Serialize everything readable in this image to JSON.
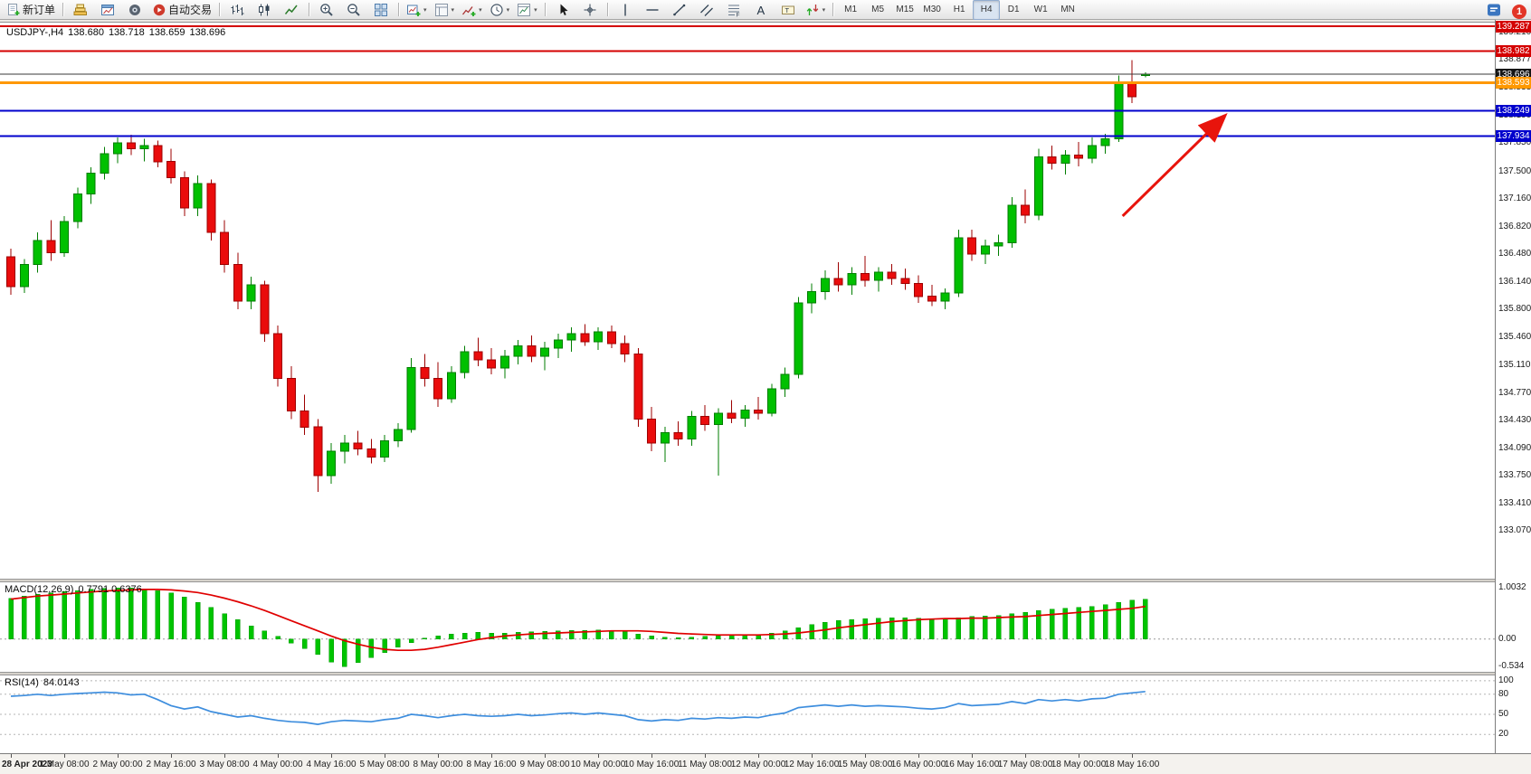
{
  "toolbar": {
    "dropdown_caret": "▾",
    "notification_badge": "1",
    "groups": [
      {
        "items": [
          {
            "name": "new-order",
            "icon": "new-order",
            "label": "新订单"
          }
        ]
      },
      {
        "items": [
          {
            "name": "market-watch",
            "icon": "market-watch"
          },
          {
            "name": "chart-window",
            "icon": "chart-window"
          },
          {
            "name": "sound-alert",
            "icon": "sound"
          },
          {
            "name": "auto-trading",
            "icon": "auto-trading",
            "label": "自动交易"
          }
        ]
      },
      {
        "items": [
          {
            "name": "bar-chart-mode",
            "icon": "bar-chart"
          },
          {
            "name": "candlestick-mode",
            "icon": "candlestick-chart"
          },
          {
            "name": "line-chart-mode",
            "icon": "line-chart"
          }
        ]
      },
      {
        "items": [
          {
            "name": "zoom-in",
            "icon": "zoom-in"
          },
          {
            "name": "zoom-out",
            "icon": "zoom-out"
          },
          {
            "name": "tile-windows",
            "icon": "tile-windows"
          }
        ]
      },
      {
        "items": [
          {
            "name": "new-chart",
            "icon": "new-chart",
            "dropdown": true
          },
          {
            "name": "profiles",
            "icon": "profiles",
            "dropdown": true
          },
          {
            "name": "indicators-list",
            "icon": "indicators",
            "dropdown": true
          },
          {
            "name": "periods",
            "icon": "periods",
            "dropdown": true
          },
          {
            "name": "templates",
            "icon": "templates",
            "dropdown": true
          }
        ]
      },
      {
        "items": [
          {
            "name": "cursor-tool",
            "icon": "cursor"
          },
          {
            "name": "crosshair-tool",
            "icon": "crosshair"
          }
        ]
      },
      {
        "items": [
          {
            "name": "vertical-line-tool",
            "icon": "vertical-line"
          },
          {
            "name": "horizontal-line-tool",
            "icon": "horizontal-line"
          },
          {
            "name": "trendline-tool",
            "icon": "trendline"
          },
          {
            "name": "equidistant-channel-tool",
            "icon": "equidistant-channel"
          },
          {
            "name": "fibonacci-tool",
            "icon": "fibonacci"
          },
          {
            "name": "text-tool",
            "icon": "text"
          },
          {
            "name": "text-label-tool",
            "icon": "text-label"
          },
          {
            "name": "arrows-tool",
            "icon": "arrows",
            "dropdown": true
          }
        ]
      },
      {
        "items": [
          {
            "name": "tf-m1",
            "label": "M1"
          },
          {
            "name": "tf-m5",
            "label": "M5"
          },
          {
            "name": "tf-m15",
            "label": "M15"
          },
          {
            "name": "tf-m30",
            "label": "M30"
          },
          {
            "name": "tf-h1",
            "label": "H1"
          },
          {
            "name": "tf-h4",
            "label": "H4",
            "active": true
          },
          {
            "name": "tf-d1",
            "label": "D1"
          },
          {
            "name": "tf-w1",
            "label": "W1"
          },
          {
            "name": "tf-mn",
            "label": "MN"
          }
        ]
      }
    ]
  },
  "chart": {
    "symbol_period": "USDJPY-,H4",
    "ohlc": {
      "open": "138.680",
      "high": "138.718",
      "low": "138.659",
      "close": "138.696"
    }
  },
  "indicators": {
    "macd": {
      "label": "MACD(12,26,9)",
      "values": "0.7791 0.6376"
    },
    "rsi": {
      "label": "RSI(14)",
      "values": "84.0143"
    }
  },
  "chart_data": {
    "type": "candlestick",
    "symbol": "USDJPY-",
    "timeframe": "H4",
    "colors": {
      "bull": "#00c000",
      "bull_border": "#007e00",
      "bear": "#ea0c0c",
      "bear_border": "#9d0000",
      "macd_hist": "#00c400",
      "macd_hist_border": "#009b00",
      "macd_signal": "#e00000",
      "rsi_line": "#3e8ede",
      "bid_line": "#3a3a3a",
      "arrow": "#e8140c"
    },
    "price_axis": {
      "ylim": [
        132.481,
        139.333
      ],
      "ticks": [
        "139.210",
        "138.877",
        "138.533",
        "138.190",
        "137.850",
        "137.500",
        "137.160",
        "136.820",
        "136.480",
        "136.140",
        "135.800",
        "135.460",
        "135.110",
        "134.770",
        "134.430",
        "134.090",
        "133.750",
        "133.410",
        "133.070"
      ]
    },
    "hlines": [
      {
        "price": 139.287,
        "label": "139.287",
        "color": "#d40000",
        "width": 2,
        "tag": "#d40000"
      },
      {
        "price": 138.982,
        "label": "138.982",
        "color": "#d40000",
        "width": 2,
        "tag": "#d40000"
      },
      {
        "price": 138.696,
        "label": "138.696",
        "color": "#3a3a3a",
        "width": 1,
        "tag": "#151515"
      },
      {
        "price": 138.593,
        "label": "138.593",
        "color": "#ff9800",
        "width": 3,
        "tag": "#ff9800"
      },
      {
        "price": 138.249,
        "label": "138.249",
        "color": "#0000cd",
        "width": 2,
        "tag": "#0000cd"
      },
      {
        "price": 137.934,
        "label": "137.934",
        "color": "#0000cd",
        "width": 2,
        "tag": "#0000cd"
      }
    ],
    "candles": [
      [
        136.45,
        136.55,
        135.98,
        136.08
      ],
      [
        136.08,
        136.42,
        136.0,
        136.35
      ],
      [
        136.35,
        136.75,
        136.25,
        136.65
      ],
      [
        136.65,
        136.9,
        136.4,
        136.5
      ],
      [
        136.5,
        136.95,
        136.45,
        136.88
      ],
      [
        136.88,
        137.3,
        136.8,
        137.22
      ],
      [
        137.22,
        137.55,
        137.1,
        137.48
      ],
      [
        137.48,
        137.8,
        137.4,
        137.72
      ],
      [
        137.72,
        137.92,
        137.6,
        137.85
      ],
      [
        137.85,
        137.95,
        137.7,
        137.78
      ],
      [
        137.78,
        137.9,
        137.62,
        137.82
      ],
      [
        137.82,
        137.88,
        137.55,
        137.62
      ],
      [
        137.62,
        137.78,
        137.35,
        137.42
      ],
      [
        137.42,
        137.5,
        136.95,
        137.05
      ],
      [
        137.05,
        137.45,
        136.95,
        137.35
      ],
      [
        137.35,
        137.4,
        136.65,
        136.75
      ],
      [
        136.75,
        136.9,
        136.25,
        136.35
      ],
      [
        136.35,
        136.5,
        135.8,
        135.9
      ],
      [
        135.9,
        136.2,
        135.8,
        136.1
      ],
      [
        136.1,
        136.15,
        135.4,
        135.5
      ],
      [
        135.5,
        135.6,
        134.85,
        134.95
      ],
      [
        134.95,
        135.1,
        134.45,
        134.55
      ],
      [
        134.55,
        134.75,
        134.25,
        134.35
      ],
      [
        134.35,
        134.45,
        133.55,
        133.75
      ],
      [
        133.75,
        134.15,
        133.65,
        134.05
      ],
      [
        134.05,
        134.25,
        133.9,
        134.15
      ],
      [
        134.15,
        134.3,
        134.0,
        134.08
      ],
      [
        134.08,
        134.2,
        133.9,
        133.98
      ],
      [
        133.98,
        134.25,
        133.92,
        134.18
      ],
      [
        134.18,
        134.4,
        134.1,
        134.32
      ],
      [
        134.32,
        135.2,
        134.28,
        135.08
      ],
      [
        135.08,
        135.25,
        134.85,
        134.95
      ],
      [
        134.95,
        135.15,
        134.6,
        134.7
      ],
      [
        134.7,
        135.1,
        134.65,
        135.02
      ],
      [
        135.02,
        135.35,
        134.95,
        135.28
      ],
      [
        135.28,
        135.45,
        135.1,
        135.18
      ],
      [
        135.18,
        135.32,
        135.0,
        135.08
      ],
      [
        135.08,
        135.3,
        134.95,
        135.22
      ],
      [
        135.22,
        135.42,
        135.12,
        135.35
      ],
      [
        135.35,
        135.48,
        135.15,
        135.22
      ],
      [
        135.22,
        135.4,
        135.05,
        135.32
      ],
      [
        135.32,
        135.5,
        135.2,
        135.42
      ],
      [
        135.42,
        135.58,
        135.28,
        135.5
      ],
      [
        135.5,
        135.62,
        135.35,
        135.4
      ],
      [
        135.4,
        135.58,
        135.3,
        135.52
      ],
      [
        135.52,
        135.6,
        135.32,
        135.38
      ],
      [
        135.38,
        135.48,
        135.15,
        135.25
      ],
      [
        135.25,
        135.32,
        134.35,
        134.45
      ],
      [
        134.45,
        134.6,
        134.05,
        134.15
      ],
      [
        134.15,
        134.35,
        133.92,
        134.28
      ],
      [
        134.28,
        134.42,
        134.12,
        134.2
      ],
      [
        134.2,
        134.55,
        134.12,
        134.48
      ],
      [
        134.48,
        134.62,
        134.3,
        134.38
      ],
      [
        134.38,
        134.58,
        133.75,
        134.52
      ],
      [
        134.52,
        134.68,
        134.4,
        134.46
      ],
      [
        134.46,
        134.62,
        134.35,
        134.56
      ],
      [
        134.56,
        134.72,
        134.44,
        134.52
      ],
      [
        134.52,
        134.88,
        134.48,
        134.82
      ],
      [
        134.82,
        135.08,
        134.72,
        135.0
      ],
      [
        135.0,
        135.95,
        134.95,
        135.88
      ],
      [
        135.88,
        136.12,
        135.75,
        136.02
      ],
      [
        136.02,
        136.28,
        135.92,
        136.18
      ],
      [
        136.18,
        136.38,
        136.02,
        136.1
      ],
      [
        136.1,
        136.32,
        135.98,
        136.24
      ],
      [
        136.24,
        136.46,
        136.08,
        136.16
      ],
      [
        136.16,
        136.32,
        136.02,
        136.26
      ],
      [
        136.26,
        136.36,
        136.1,
        136.18
      ],
      [
        136.18,
        136.3,
        136.04,
        136.12
      ],
      [
        136.12,
        136.22,
        135.88,
        135.96
      ],
      [
        135.96,
        136.1,
        135.84,
        135.9
      ],
      [
        135.9,
        136.06,
        135.8,
        136.0
      ],
      [
        136.0,
        136.78,
        135.95,
        136.68
      ],
      [
        136.68,
        136.78,
        136.4,
        136.48
      ],
      [
        136.48,
        136.66,
        136.36,
        136.58
      ],
      [
        136.58,
        136.72,
        136.46,
        136.62
      ],
      [
        136.62,
        137.18,
        136.56,
        137.08
      ],
      [
        137.08,
        137.28,
        136.86,
        136.96
      ],
      [
        136.96,
        137.78,
        136.9,
        137.68
      ],
      [
        137.68,
        137.82,
        137.52,
        137.6
      ],
      [
        137.6,
        137.76,
        137.46,
        137.7
      ],
      [
        137.7,
        137.86,
        137.56,
        137.66
      ],
      [
        137.66,
        137.92,
        137.6,
        137.82
      ],
      [
        137.82,
        137.96,
        137.72,
        137.9
      ],
      [
        137.9,
        138.68,
        137.86,
        138.6
      ],
      [
        138.6,
        138.87,
        138.34,
        138.42
      ],
      [
        138.68,
        138.718,
        138.659,
        138.696
      ]
    ],
    "time_labels": [
      {
        "i": 0,
        "t": "28 Apr 2023",
        "date": true
      },
      {
        "i": 4,
        "t": "1 May 08:00"
      },
      {
        "i": 8,
        "t": "2 May 00:00"
      },
      {
        "i": 12,
        "t": "2 May 16:00"
      },
      {
        "i": 16,
        "t": "3 May 08:00"
      },
      {
        "i": 20,
        "t": "4 May 00:00"
      },
      {
        "i": 24,
        "t": "4 May 16:00"
      },
      {
        "i": 28,
        "t": "5 May 08:00"
      },
      {
        "i": 32,
        "t": "8 May 00:00"
      },
      {
        "i": 36,
        "t": "8 May 16:00"
      },
      {
        "i": 40,
        "t": "9 May 08:00"
      },
      {
        "i": 44,
        "t": "10 May 00:00"
      },
      {
        "i": 48,
        "t": "10 May 16:00"
      },
      {
        "i": 52,
        "t": "11 May 08:00"
      },
      {
        "i": 56,
        "t": "12 May 00:00"
      },
      {
        "i": 60,
        "t": "12 May 16:00"
      },
      {
        "i": 64,
        "t": "15 May 08:00"
      },
      {
        "i": 68,
        "t": "16 May 00:00"
      },
      {
        "i": 72,
        "t": "16 May 16:00"
      },
      {
        "i": 76,
        "t": "17 May 08:00"
      },
      {
        "i": 80,
        "t": "18 May 00:00"
      },
      {
        "i": 84,
        "t": "18 May 16:00"
      }
    ],
    "macd": {
      "ylim": [
        -0.64,
        1.109
      ],
      "scale_marks": [
        {
          "v": 1.0032,
          "t": "1.0032"
        },
        {
          "v": 0,
          "t": "0.00"
        },
        {
          "v": -0.534,
          "t": "-0.534"
        }
      ],
      "histogram": [
        0.8,
        0.84,
        0.88,
        0.9,
        0.93,
        0.95,
        0.97,
        0.99,
        1.0032,
        1.0,
        0.98,
        0.95,
        0.9,
        0.82,
        0.72,
        0.62,
        0.5,
        0.38,
        0.26,
        0.16,
        0.05,
        -0.08,
        -0.18,
        -0.3,
        -0.45,
        -0.534,
        -0.46,
        -0.36,
        -0.26,
        -0.16,
        -0.07,
        0.02,
        0.06,
        0.1,
        0.12,
        0.13,
        0.12,
        0.12,
        0.13,
        0.14,
        0.15,
        0.16,
        0.17,
        0.17,
        0.18,
        0.17,
        0.15,
        0.1,
        0.06,
        0.04,
        0.03,
        0.04,
        0.05,
        0.06,
        0.07,
        0.08,
        0.09,
        0.12,
        0.16,
        0.22,
        0.28,
        0.33,
        0.36,
        0.38,
        0.4,
        0.41,
        0.42,
        0.42,
        0.41,
        0.4,
        0.4,
        0.42,
        0.44,
        0.45,
        0.46,
        0.5,
        0.52,
        0.56,
        0.58,
        0.6,
        0.62,
        0.64,
        0.67,
        0.72,
        0.76,
        0.7791
      ],
      "signal": [
        0.78,
        0.81,
        0.84,
        0.86,
        0.88,
        0.9,
        0.92,
        0.94,
        0.95,
        0.96,
        0.97,
        0.97,
        0.96,
        0.94,
        0.91,
        0.86,
        0.8,
        0.73,
        0.65,
        0.56,
        0.46,
        0.36,
        0.26,
        0.16,
        0.06,
        -0.03,
        -0.1,
        -0.16,
        -0.2,
        -0.22,
        -0.22,
        -0.2,
        -0.16,
        -0.11,
        -0.06,
        -0.01,
        0.03,
        0.06,
        0.08,
        0.1,
        0.11,
        0.12,
        0.13,
        0.14,
        0.15,
        0.16,
        0.16,
        0.16,
        0.15,
        0.13,
        0.11,
        0.1,
        0.09,
        0.08,
        0.08,
        0.08,
        0.08,
        0.09,
        0.1,
        0.12,
        0.15,
        0.18,
        0.22,
        0.25,
        0.28,
        0.31,
        0.34,
        0.36,
        0.38,
        0.39,
        0.4,
        0.4,
        0.41,
        0.41,
        0.42,
        0.43,
        0.44,
        0.46,
        0.48,
        0.5,
        0.52,
        0.54,
        0.56,
        0.58,
        0.6,
        0.6376
      ]
    },
    "rsi": {
      "ylim": [
        -8,
        108
      ],
      "levels": [
        "100",
        "80",
        "50",
        "20"
      ],
      "values": [
        77,
        78,
        80,
        78,
        80,
        81,
        82,
        83,
        82,
        79,
        80,
        72,
        63,
        58,
        61,
        54,
        50,
        46,
        48,
        44,
        41,
        39,
        38,
        35,
        39,
        41,
        40,
        39,
        42,
        44,
        50,
        48,
        45,
        48,
        50,
        48,
        47,
        48,
        50,
        48,
        49,
        51,
        52,
        50,
        52,
        50,
        48,
        42,
        40,
        42,
        41,
        44,
        43,
        45,
        44,
        46,
        45,
        49,
        52,
        60,
        62,
        64,
        62,
        64,
        62,
        63,
        62,
        61,
        59,
        58,
        60,
        66,
        63,
        64,
        65,
        69,
        66,
        72,
        70,
        72,
        70,
        73,
        74,
        80,
        82,
        84.01
      ]
    },
    "annotations": [
      {
        "type": "arrow",
        "name": "up-trend-arrow",
        "color": "#e8140c",
        "stroke_width": 3,
        "from_candle": 83.3,
        "from_price": 136.95,
        "to_candle": 90.8,
        "to_price": 138.16
      }
    ]
  }
}
